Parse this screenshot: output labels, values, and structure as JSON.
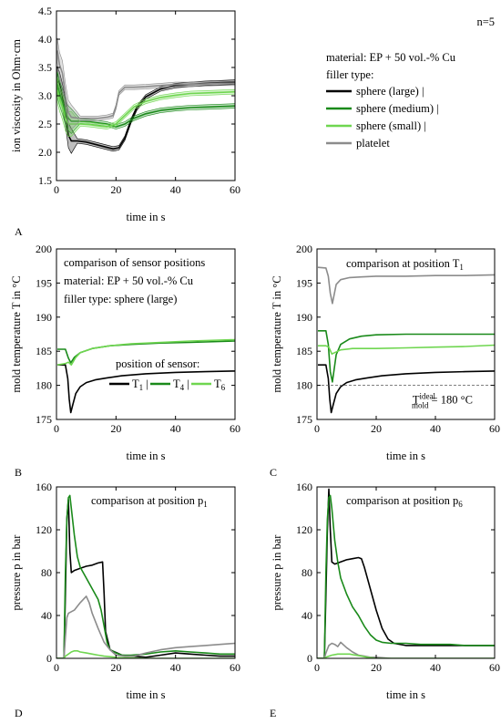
{
  "chart_data": [
    {
      "panel": "A",
      "type": "line",
      "xlabel": "time in s",
      "ylabel": "ion viscosity in Ohm·cm",
      "xlim": [
        0,
        60
      ],
      "ylim": [
        1.5,
        4.5
      ],
      "xticks": [
        "0",
        "20",
        "40",
        "60"
      ],
      "yticks": [
        "1.5",
        "2.0",
        "2.5",
        "3.0",
        "3.5",
        "4.0",
        "4.5"
      ],
      "annotation": "n=5",
      "legend_lines": [
        "material: EP + 50 vol.-% Cu",
        "filler type:"
      ],
      "series": [
        {
          "name": "sphere (large) |",
          "color": "#000000",
          "x": [
            0.3,
            1,
            2,
            3,
            4,
            5,
            7,
            10,
            13,
            16,
            19,
            21,
            23,
            25,
            27,
            30,
            35,
            40,
            45,
            50,
            55,
            60
          ],
          "y": [
            3.3,
            3.2,
            3.0,
            2.7,
            2.3,
            2.2,
            2.2,
            2.18,
            2.14,
            2.1,
            2.06,
            2.08,
            2.25,
            2.55,
            2.78,
            2.98,
            3.12,
            3.18,
            3.2,
            3.22,
            3.23,
            3.24
          ]
        },
        {
          "name": "sphere (medium) |",
          "color": "#1a8a1a",
          "x": [
            0.3,
            1,
            2,
            3,
            4,
            5,
            8,
            11,
            14,
            17,
            20,
            23,
            26,
            30,
            35,
            40,
            45,
            50,
            55,
            60
          ],
          "y": [
            3.2,
            3.05,
            2.9,
            2.7,
            2.6,
            2.55,
            2.55,
            2.54,
            2.52,
            2.5,
            2.45,
            2.5,
            2.6,
            2.68,
            2.74,
            2.77,
            2.79,
            2.8,
            2.81,
            2.82
          ]
        },
        {
          "name": "sphere (small) |",
          "color": "#6fd650",
          "x": [
            0.3,
            1,
            2,
            3,
            4,
            5,
            8,
            11,
            14,
            17,
            20,
            23,
            26,
            30,
            35,
            40,
            45,
            50,
            55,
            60
          ],
          "y": [
            3.1,
            2.95,
            2.8,
            2.6,
            2.5,
            2.5,
            2.5,
            2.49,
            2.47,
            2.45,
            2.5,
            2.65,
            2.8,
            2.9,
            2.97,
            3.01,
            3.04,
            3.05,
            3.06,
            3.07
          ]
        },
        {
          "name": "platelet",
          "color": "#8c8c8c",
          "x": [
            0.3,
            1,
            2,
            3,
            4,
            5,
            8,
            11,
            14,
            17,
            19,
            20,
            21,
            23,
            26,
            30,
            35,
            40,
            45,
            50,
            55,
            60
          ],
          "y": [
            3.8,
            3.55,
            3.4,
            3.0,
            2.7,
            2.62,
            2.6,
            2.6,
            2.6,
            2.62,
            2.65,
            2.8,
            3.05,
            3.15,
            3.15,
            3.16,
            3.18,
            3.2,
            3.2,
            3.21,
            3.22,
            3.22
          ]
        }
      ]
    },
    {
      "panel": "B",
      "type": "line",
      "xlabel": "time in s",
      "ylabel": "mold temperature T in °C",
      "xlim": [
        0,
        60
      ],
      "ylim": [
        175,
        200
      ],
      "xticks": [
        "0",
        "20",
        "40",
        "60"
      ],
      "yticks": [
        "175",
        "180",
        "185",
        "190",
        "195",
        "200"
      ],
      "legend_lines": [
        "comparison of sensor positions",
        "material: EP + 50 vol.-% Cu",
        "filler type: sphere (large)"
      ],
      "legend_title": "position of sensor:",
      "series": [
        {
          "name": "T",
          "sub": "1",
          "suffix": " |",
          "color": "#000000",
          "x": [
            0.3,
            3,
            3.8,
            4.3,
            4.8,
            5.5,
            6.5,
            8,
            10,
            13,
            17,
            22,
            30,
            40,
            50,
            60
          ],
          "y": [
            183,
            183,
            181,
            178,
            176,
            177.2,
            178.8,
            179.8,
            180.4,
            180.8,
            181.1,
            181.4,
            181.7,
            181.9,
            182.0,
            182.1
          ]
        },
        {
          "name": "T",
          "sub": "4",
          "suffix": " |",
          "color": "#1a8a1a",
          "x": [
            0.3,
            3,
            4,
            4.8,
            6,
            8,
            12,
            18,
            25,
            35,
            45,
            60
          ],
          "y": [
            185.3,
            185.3,
            184,
            183.3,
            184.1,
            184.8,
            185.4,
            185.8,
            186.0,
            186.2,
            186.3,
            186.5
          ]
        },
        {
          "name": "T",
          "sub": "6",
          "suffix": "",
          "color": "#6fd650",
          "x": [
            0.3,
            3,
            4,
            5,
            6.5,
            8,
            12,
            18,
            25,
            35,
            45,
            60
          ],
          "y": [
            183,
            183.2,
            183.4,
            183.0,
            184.1,
            184.8,
            185.4,
            185.8,
            186.1,
            186.3,
            186.5,
            186.7
          ]
        }
      ]
    },
    {
      "panel": "C",
      "type": "line",
      "xlabel": "time in s",
      "ylabel": "mold temperature T in °C",
      "xlim": [
        0,
        60
      ],
      "ylim": [
        175,
        200
      ],
      "xticks": [
        "0",
        "20",
        "40",
        "60"
      ],
      "yticks": [
        "175",
        "180",
        "185",
        "190",
        "195",
        "200"
      ],
      "title": "comparison at position T",
      "title_sub": "1",
      "reference": {
        "y": 180,
        "label_main": "T",
        "label_sup": "ideal",
        "label_sub": "mold",
        "label_value": "= 180 °C"
      },
      "series": [
        {
          "color": "#000000",
          "x": [
            0.3,
            3,
            3.8,
            4.3,
            4.8,
            5.5,
            6.5,
            8,
            10,
            13,
            17,
            22,
            30,
            40,
            50,
            60
          ],
          "y": [
            183,
            183,
            181,
            178,
            176,
            177.2,
            178.8,
            179.8,
            180.4,
            180.8,
            181.1,
            181.4,
            181.7,
            181.9,
            182.0,
            182.1
          ]
        },
        {
          "color": "#1a8a1a",
          "x": [
            0.3,
            3,
            3.8,
            4.5,
            5.2,
            6.5,
            8,
            11,
            15,
            20,
            30,
            40,
            50,
            60
          ],
          "y": [
            188,
            188,
            186,
            182,
            180.5,
            184.5,
            186,
            186.8,
            187.2,
            187.4,
            187.5,
            187.5,
            187.5,
            187.5
          ]
        },
        {
          "color": "#6fd650",
          "x": [
            0.3,
            3,
            4,
            5,
            6,
            8,
            12,
            20,
            30,
            40,
            50,
            60
          ],
          "y": [
            185.8,
            185.8,
            185.6,
            184.6,
            184.8,
            185.2,
            185.4,
            185.4,
            185.5,
            185.6,
            185.7,
            185.9
          ]
        },
        {
          "color": "#8c8c8c",
          "x": [
            0.3,
            3,
            3.8,
            4.5,
            5.2,
            6.5,
            8,
            11,
            15,
            20,
            30,
            40,
            50,
            60
          ],
          "y": [
            197.3,
            197.2,
            196,
            193.5,
            192,
            194.8,
            195.5,
            195.8,
            195.9,
            196,
            196,
            196.1,
            196.1,
            196.2
          ]
        }
      ]
    },
    {
      "panel": "D",
      "type": "line",
      "xlabel": "time in s",
      "ylabel": "pressure p in bar",
      "xlim": [
        0,
        60
      ],
      "ylim": [
        0,
        160
      ],
      "xticks": [
        "0",
        "20",
        "40",
        "60"
      ],
      "yticks": [
        "0",
        "40",
        "80",
        "120",
        "160"
      ],
      "title": "comparison at position p",
      "title_sub": "1",
      "series": [
        {
          "color": "#000000",
          "x": [
            0,
            2.5,
            3,
            3.5,
            4,
            4.5,
            5,
            6,
            8,
            10,
            12,
            14,
            15.5,
            16,
            16.5,
            18,
            22,
            26,
            30,
            35,
            40,
            45,
            50,
            55,
            60
          ],
          "y": [
            0,
            0,
            60,
            130,
            148,
            100,
            80,
            82,
            84,
            86,
            87,
            89,
            90,
            60,
            25,
            8,
            3,
            2,
            1,
            3,
            5,
            4,
            3,
            2,
            2
          ]
        },
        {
          "color": "#1a8a1a",
          "x": [
            0,
            2.5,
            3,
            3.5,
            4,
            4.5,
            5,
            6,
            7,
            8,
            10,
            12,
            14,
            15,
            16,
            17,
            18,
            20,
            22,
            25,
            30,
            35,
            40,
            45,
            50,
            55,
            60
          ],
          "y": [
            0,
            0,
            80,
            130,
            150,
            152,
            140,
            115,
            95,
            85,
            75,
            65,
            55,
            45,
            30,
            15,
            8,
            5,
            3,
            3,
            4,
            6,
            7,
            6,
            5,
            4,
            4
          ]
        },
        {
          "color": "#8c8c8c",
          "x": [
            0,
            2.5,
            3,
            3.5,
            4,
            6,
            8,
            9,
            10,
            11,
            12,
            14,
            16,
            18,
            20,
            23,
            26,
            30,
            35,
            40,
            45,
            50,
            55,
            60
          ],
          "y": [
            0,
            0,
            20,
            38,
            42,
            45,
            52,
            55,
            58,
            52,
            42,
            28,
            15,
            8,
            3,
            2,
            2,
            5,
            8,
            10,
            11,
            12,
            13,
            14
          ]
        },
        {
          "color": "#6fd650",
          "x": [
            0,
            2.5,
            3,
            4,
            5,
            6,
            7,
            8,
            10,
            12,
            14,
            16,
            20,
            30,
            40,
            50,
            60
          ],
          "y": [
            0,
            0,
            2,
            4,
            6,
            7,
            7,
            6,
            5,
            4,
            3,
            2,
            1,
            0,
            0,
            0,
            0
          ]
        }
      ]
    },
    {
      "panel": "E",
      "type": "line",
      "xlabel": "time in s",
      "ylabel": "pressure p in bar",
      "xlim": [
        0,
        60
      ],
      "ylim": [
        0,
        160
      ],
      "xticks": [
        "0",
        "20",
        "40",
        "60"
      ],
      "yticks": [
        "0",
        "40",
        "80",
        "120",
        "160"
      ],
      "title": "comparison at position p",
      "title_sub": "6",
      "series": [
        {
          "color": "#000000",
          "x": [
            0,
            2.5,
            3,
            3.5,
            4,
            4.5,
            5,
            6,
            8,
            10,
            12,
            14,
            15,
            16,
            18,
            20,
            22,
            24,
            26,
            30,
            35,
            40,
            45,
            50,
            55,
            60
          ],
          "y": [
            0,
            0,
            60,
            120,
            158,
            120,
            90,
            88,
            90,
            92,
            93,
            94,
            93,
            85,
            65,
            45,
            28,
            18,
            14,
            12,
            12,
            12,
            12,
            12,
            12,
            12
          ]
        },
        {
          "color": "#1a8a1a",
          "x": [
            0,
            2.5,
            3,
            3.5,
            4,
            4.5,
            5,
            6,
            7,
            8,
            10,
            12,
            14,
            16,
            18,
            20,
            22,
            25,
            30,
            35,
            40,
            45,
            50,
            55,
            60
          ],
          "y": [
            0,
            0,
            80,
            130,
            150,
            152,
            140,
            110,
            90,
            75,
            60,
            48,
            40,
            30,
            22,
            17,
            15,
            14,
            14,
            13,
            13,
            13,
            12,
            12,
            12
          ]
        },
        {
          "color": "#8c8c8c",
          "x": [
            0,
            2.5,
            3,
            4,
            5,
            6,
            7,
            8,
            10,
            12,
            14,
            16,
            18,
            20,
            25,
            30,
            40,
            50,
            60
          ],
          "y": [
            0,
            0,
            5,
            12,
            14,
            13,
            11,
            15,
            10,
            6,
            3,
            2,
            1,
            1,
            0,
            0,
            0,
            0,
            0
          ]
        },
        {
          "color": "#6fd650",
          "x": [
            0,
            2.5,
            3,
            5,
            7,
            9,
            11,
            13,
            15,
            17,
            20,
            30,
            40,
            50,
            60
          ],
          "y": [
            0,
            0,
            1,
            3,
            4,
            4,
            4,
            3,
            2,
            1,
            0,
            0,
            0,
            0,
            0
          ]
        }
      ]
    }
  ],
  "panel_labels": [
    "A",
    "B",
    "C",
    "D",
    "E"
  ]
}
